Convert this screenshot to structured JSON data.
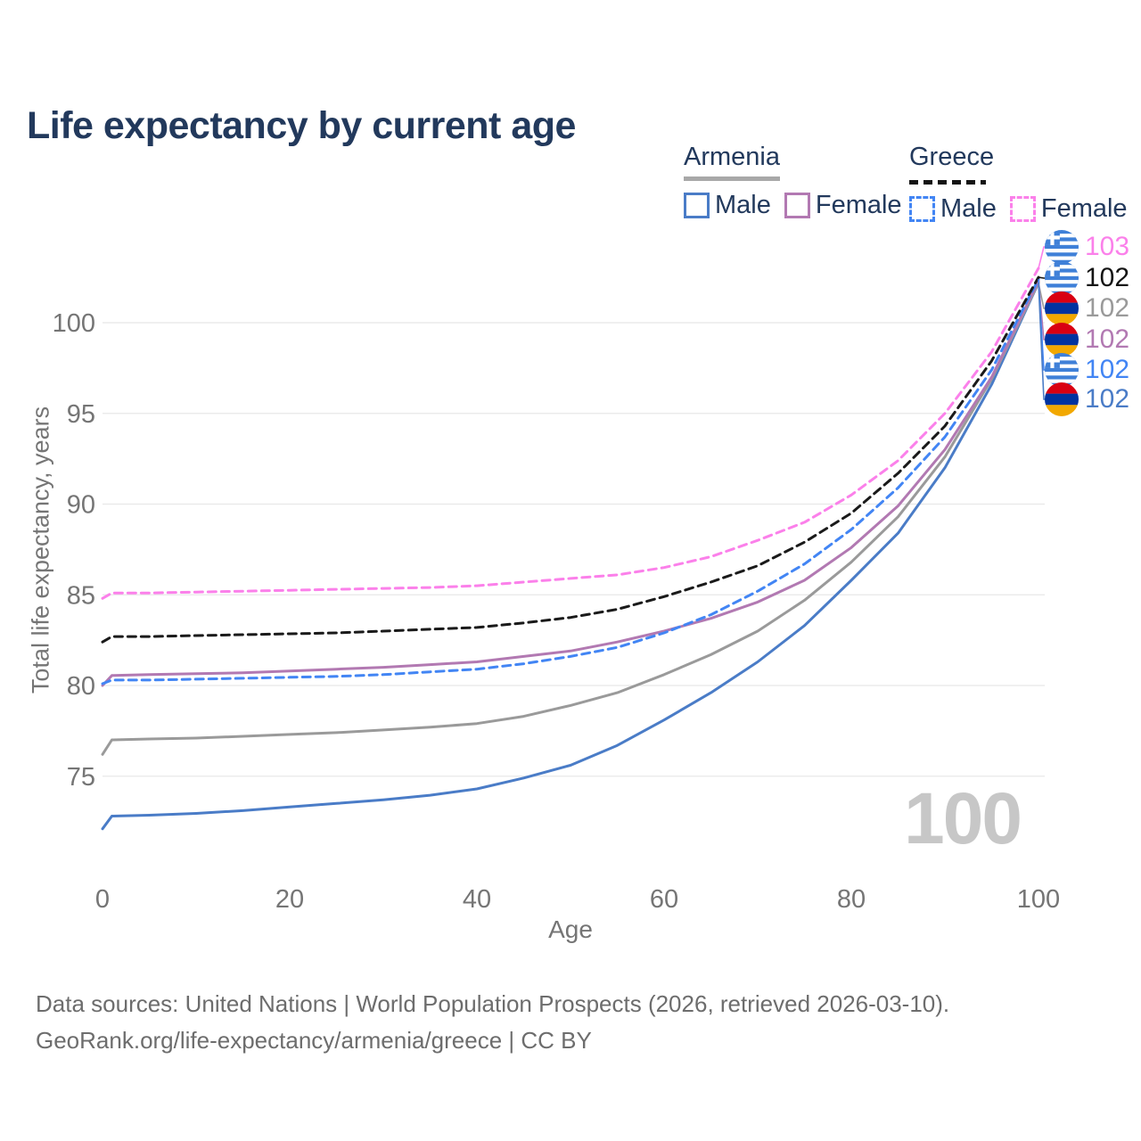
{
  "title": "Life expectancy by current age",
  "legend": {
    "groups": [
      {
        "name": "Armenia",
        "line_style": "solid",
        "underline_color": "#a8a8a8",
        "items": [
          {
            "label": "Male",
            "color": "#4a7cc7"
          },
          {
            "label": "Female",
            "color": "#b279b2"
          }
        ]
      },
      {
        "name": "Greece",
        "line_style": "dashed",
        "underline_color": "#141414",
        "items": [
          {
            "label": "Male",
            "color": "#4285f4"
          },
          {
            "label": "Female",
            "color": "#fb80ea"
          }
        ]
      }
    ]
  },
  "chart_data": {
    "type": "line",
    "title": "Life expectancy by current age",
    "xlabel": "Age",
    "ylabel": "Total life expectancy, years",
    "x_ticks": [
      0,
      20,
      40,
      60,
      80,
      100
    ],
    "y_ticks": [
      75,
      80,
      85,
      90,
      95,
      100
    ],
    "xlim": [
      0,
      100
    ],
    "ylim": [
      71.5,
      104
    ],
    "grid": "horizontal-only",
    "legend_position": "top-right",
    "watermark": "100",
    "series": [
      {
        "name": "Armenia Male",
        "country": "Armenia",
        "sex": "Male",
        "color": "#4a7cc7",
        "dash": false,
        "points": [
          [
            0,
            72.1
          ],
          [
            1,
            72.8
          ],
          [
            5,
            72.85
          ],
          [
            10,
            72.95
          ],
          [
            15,
            73.1
          ],
          [
            20,
            73.3
          ],
          [
            25,
            73.5
          ],
          [
            30,
            73.7
          ],
          [
            35,
            73.95
          ],
          [
            40,
            74.3
          ],
          [
            45,
            74.9
          ],
          [
            50,
            75.6
          ],
          [
            55,
            76.7
          ],
          [
            60,
            78.1
          ],
          [
            65,
            79.6
          ],
          [
            70,
            81.3
          ],
          [
            75,
            83.3
          ],
          [
            80,
            85.8
          ],
          [
            85,
            88.4
          ],
          [
            90,
            92.0
          ],
          [
            95,
            96.6
          ],
          [
            100,
            102.2
          ]
        ]
      },
      {
        "name": "Armenia",
        "country": "Armenia",
        "sex": "Both",
        "color": "#9a9a9a",
        "dash": false,
        "points": [
          [
            0,
            76.2
          ],
          [
            1,
            77.0
          ],
          [
            5,
            77.05
          ],
          [
            10,
            77.1
          ],
          [
            15,
            77.2
          ],
          [
            20,
            77.3
          ],
          [
            25,
            77.4
          ],
          [
            30,
            77.55
          ],
          [
            35,
            77.7
          ],
          [
            40,
            77.9
          ],
          [
            45,
            78.3
          ],
          [
            50,
            78.9
          ],
          [
            55,
            79.6
          ],
          [
            60,
            80.6
          ],
          [
            65,
            81.7
          ],
          [
            70,
            83.0
          ],
          [
            75,
            84.7
          ],
          [
            80,
            86.8
          ],
          [
            85,
            89.3
          ],
          [
            90,
            92.6
          ],
          [
            95,
            96.9
          ],
          [
            100,
            102.2
          ]
        ]
      },
      {
        "name": "Armenia Female",
        "country": "Armenia",
        "sex": "Female",
        "color": "#b279b2",
        "dash": false,
        "points": [
          [
            0,
            80.0
          ],
          [
            1,
            80.55
          ],
          [
            5,
            80.6
          ],
          [
            10,
            80.65
          ],
          [
            15,
            80.7
          ],
          [
            20,
            80.8
          ],
          [
            25,
            80.9
          ],
          [
            30,
            81.0
          ],
          [
            35,
            81.15
          ],
          [
            40,
            81.3
          ],
          [
            45,
            81.6
          ],
          [
            50,
            81.9
          ],
          [
            55,
            82.4
          ],
          [
            60,
            83.0
          ],
          [
            65,
            83.7
          ],
          [
            70,
            84.6
          ],
          [
            75,
            85.8
          ],
          [
            80,
            87.6
          ],
          [
            85,
            89.9
          ],
          [
            90,
            93.0
          ],
          [
            95,
            97.0
          ],
          [
            100,
            102.3
          ]
        ]
      },
      {
        "name": "Greece Male",
        "country": "Greece",
        "sex": "Male",
        "color": "#4285f4",
        "dash": true,
        "points": [
          [
            0,
            80.1
          ],
          [
            1,
            80.3
          ],
          [
            5,
            80.3
          ],
          [
            10,
            80.35
          ],
          [
            15,
            80.4
          ],
          [
            20,
            80.45
          ],
          [
            25,
            80.5
          ],
          [
            30,
            80.6
          ],
          [
            35,
            80.75
          ],
          [
            40,
            80.9
          ],
          [
            45,
            81.2
          ],
          [
            50,
            81.6
          ],
          [
            55,
            82.1
          ],
          [
            60,
            82.9
          ],
          [
            65,
            83.9
          ],
          [
            70,
            85.2
          ],
          [
            75,
            86.7
          ],
          [
            80,
            88.6
          ],
          [
            85,
            90.9
          ],
          [
            90,
            93.7
          ],
          [
            95,
            97.4
          ],
          [
            100,
            102.4
          ]
        ]
      },
      {
        "name": "Greece",
        "country": "Greece",
        "sex": "Both",
        "color": "#1a1a1a",
        "dash": true,
        "points": [
          [
            0,
            82.4
          ],
          [
            1,
            82.7
          ],
          [
            5,
            82.7
          ],
          [
            10,
            82.75
          ],
          [
            15,
            82.8
          ],
          [
            20,
            82.85
          ],
          [
            25,
            82.9
          ],
          [
            30,
            83.0
          ],
          [
            35,
            83.1
          ],
          [
            40,
            83.2
          ],
          [
            45,
            83.45
          ],
          [
            50,
            83.75
          ],
          [
            55,
            84.2
          ],
          [
            60,
            84.9
          ],
          [
            65,
            85.7
          ],
          [
            70,
            86.6
          ],
          [
            75,
            87.9
          ],
          [
            80,
            89.5
          ],
          [
            85,
            91.7
          ],
          [
            90,
            94.3
          ],
          [
            95,
            97.9
          ],
          [
            100,
            102.5
          ]
        ]
      },
      {
        "name": "Greece Female",
        "country": "Greece",
        "sex": "Female",
        "color": "#fb80ea",
        "dash": true,
        "points": [
          [
            0,
            84.8
          ],
          [
            1,
            85.1
          ],
          [
            5,
            85.1
          ],
          [
            10,
            85.15
          ],
          [
            15,
            85.2
          ],
          [
            20,
            85.25
          ],
          [
            25,
            85.3
          ],
          [
            30,
            85.35
          ],
          [
            35,
            85.4
          ],
          [
            40,
            85.5
          ],
          [
            45,
            85.7
          ],
          [
            50,
            85.9
          ],
          [
            55,
            86.1
          ],
          [
            60,
            86.5
          ],
          [
            65,
            87.1
          ],
          [
            70,
            88.0
          ],
          [
            75,
            89.0
          ],
          [
            80,
            90.5
          ],
          [
            85,
            92.4
          ],
          [
            90,
            95.0
          ],
          [
            95,
            98.4
          ],
          [
            100,
            103.0
          ]
        ]
      }
    ]
  },
  "end_labels": [
    {
      "flag": "greece",
      "value": "103",
      "color": "#fb80ea",
      "end_value": 103.0
    },
    {
      "flag": "greece",
      "value": "102",
      "color": "#141414",
      "end_value": 102.5
    },
    {
      "flag": "armenia",
      "value": "102",
      "color": "#9a9a9a",
      "end_value": 102.2
    },
    {
      "flag": "armenia",
      "value": "102",
      "color": "#b279b2",
      "end_value": 102.3
    },
    {
      "flag": "greece",
      "value": "102",
      "color": "#4285f4",
      "end_value": 102.4
    },
    {
      "flag": "armenia",
      "value": "102",
      "color": "#4a7cc7",
      "end_value": 102.2
    }
  ],
  "flag_colors": {
    "armenia": [
      "#D90012",
      "#0033A0",
      "#F2A800"
    ],
    "greece_blue": "#3f80d8",
    "greece_white": "#ffffff"
  },
  "footer": {
    "line1": "Data sources: United Nations | World Population Prospects (2026, retrieved 2026-03-10).",
    "line2": "GeoRank.org/life-expectancy/armenia/greece | CC BY"
  }
}
